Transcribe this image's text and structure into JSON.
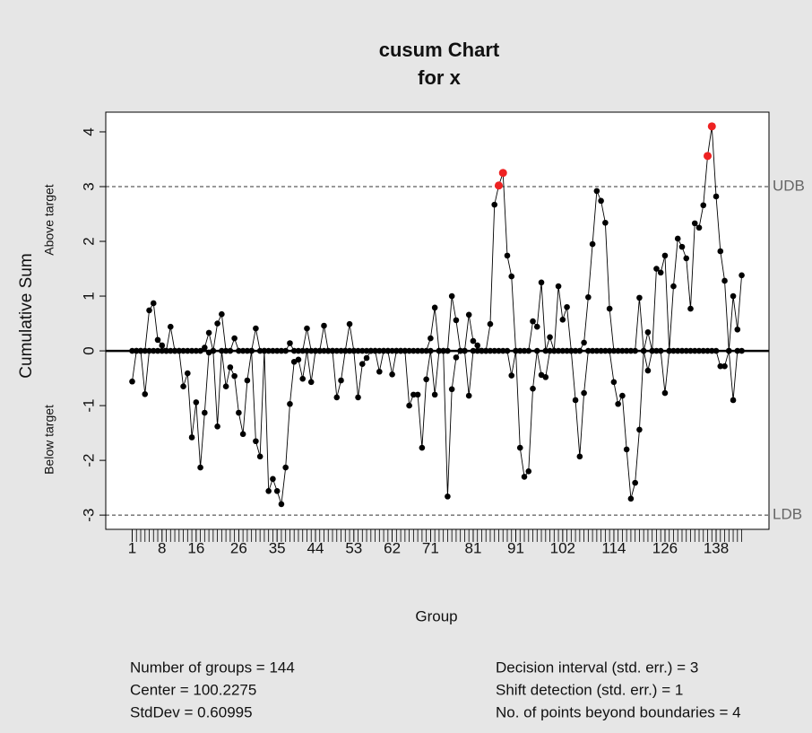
{
  "chart_data": {
    "type": "cusum",
    "title": [
      "cusum Chart",
      "for x"
    ],
    "xlabel": "Group",
    "ylabel": "Cumulative Sum",
    "upper_label": "Above target",
    "lower_label": "Below target",
    "x": [
      1,
      2,
      3,
      4,
      5,
      6,
      7,
      8,
      9,
      10,
      11,
      12,
      13,
      14,
      15,
      16,
      17,
      18,
      19,
      20,
      21,
      22,
      23,
      24,
      25,
      26,
      27,
      28,
      29,
      30,
      31,
      32,
      33,
      34,
      35,
      36,
      37,
      38,
      39,
      40,
      41,
      42,
      43,
      44,
      45,
      46,
      47,
      48,
      49,
      50,
      51,
      52,
      53,
      54,
      55,
      56,
      57,
      58,
      59,
      60,
      61,
      62,
      63,
      64,
      65,
      66,
      67,
      68,
      69,
      70,
      71,
      72,
      73,
      74,
      75,
      76,
      77,
      78,
      79,
      80,
      81,
      82,
      83,
      84,
      85,
      86,
      87,
      88,
      89,
      90,
      91,
      92,
      93,
      94,
      95,
      96,
      97,
      98,
      99,
      100,
      101,
      102,
      103,
      104,
      105,
      106,
      107,
      108,
      109,
      110,
      111,
      112,
      113,
      114,
      115,
      116,
      117,
      118,
      119,
      120,
      121,
      122,
      123,
      124,
      125,
      126,
      127,
      128,
      129,
      130,
      131,
      132,
      133,
      134,
      135,
      136,
      137,
      138,
      139,
      140,
      141,
      142,
      143,
      144
    ],
    "series": [
      {
        "color": "#000000",
        "values": [
          0,
          0,
          0,
          0,
          0.74,
          0.87,
          0.2,
          0.1,
          0,
          0.44,
          0,
          0,
          0,
          0,
          0,
          0,
          0,
          0.06,
          0.33,
          0,
          0.5,
          0.67,
          0,
          0,
          0.23,
          0,
          0,
          0,
          0,
          0.41,
          0,
          0,
          0,
          0,
          0,
          0,
          0,
          0.14,
          0,
          0,
          0,
          0.41,
          0,
          0,
          0,
          0.46,
          0,
          0,
          0,
          0,
          0,
          0.49,
          0,
          0,
          0,
          0,
          0,
          0,
          0,
          0,
          0,
          0,
          0,
          0,
          0,
          0,
          0,
          0,
          0,
          0,
          0.23,
          0.79,
          0,
          0,
          0,
          1.0,
          0.56,
          0,
          0,
          0.66,
          0.18,
          0.1,
          0,
          0,
          0.49,
          2.67,
          3.02,
          3.25,
          1.74,
          1.36,
          0,
          0,
          0,
          0,
          0.54,
          0.44,
          1.25,
          0,
          0.25,
          0,
          1.18,
          0.57,
          0.8,
          0,
          0,
          0,
          0.15,
          0.98,
          1.95,
          2.92,
          2.74,
          2.34,
          0.77,
          0,
          0,
          0,
          0,
          0,
          0,
          0.97,
          0,
          0.34,
          0,
          1.5,
          1.43,
          1.74,
          0,
          1.18,
          2.05,
          1.9,
          1.69,
          0.77,
          2.33,
          2.25,
          2.66,
          3.56,
          4.1,
          2.82,
          1.82,
          1.28,
          0,
          1.0,
          0.39,
          1.38
        ]
      },
      {
        "color": "#000000",
        "values": [
          -0.56,
          0,
          0,
          -0.79,
          0,
          0,
          0,
          0,
          0,
          0,
          0,
          0,
          -0.65,
          -0.41,
          -1.58,
          -0.94,
          -2.13,
          -1.13,
          -0.03,
          0,
          -1.38,
          0,
          -0.65,
          -0.3,
          -0.46,
          -1.13,
          -1.52,
          -0.54,
          0,
          -1.65,
          -1.93,
          0,
          -2.56,
          -2.34,
          -2.56,
          -2.8,
          -2.13,
          -0.97,
          -0.2,
          -0.16,
          -0.51,
          0,
          -0.57,
          0,
          0,
          0,
          0,
          0,
          -0.85,
          -0.54,
          0,
          0,
          0,
          -0.85,
          -0.24,
          -0.13,
          0,
          0,
          -0.38,
          0,
          0,
          -0.43,
          0,
          0,
          0,
          -1.0,
          -0.8,
          -0.8,
          -1.77,
          -0.52,
          0,
          -0.8,
          0,
          0,
          -2.66,
          -0.7,
          -0.12,
          0,
          0,
          -0.82,
          0,
          0,
          0,
          0,
          0,
          0,
          0,
          0,
          0,
          -0.45,
          0,
          -1.77,
          -2.3,
          -2.2,
          -0.69,
          0,
          -0.44,
          -0.48,
          0,
          0,
          0,
          0,
          0,
          0,
          -0.9,
          -1.93,
          -0.77,
          0,
          0,
          0,
          0,
          0,
          0,
          -0.57,
          -0.97,
          -0.82,
          -1.8,
          -2.7,
          -2.41,
          -1.44,
          0,
          -0.36,
          0,
          0,
          0,
          -0.77,
          0,
          0,
          0,
          0,
          0,
          0,
          0,
          0,
          0,
          0,
          0,
          0,
          -0.28,
          -0.28,
          0,
          -0.9,
          0,
          0
        ]
      }
    ],
    "violation_color": "#ee2222",
    "limits": [
      {
        "name": "UDB",
        "value": 3
      },
      {
        "name": "LDB",
        "value": -3
      }
    ],
    "xlim": [
      -5.2,
      150.4
    ],
    "ylim": [
      -3.26,
      4.36
    ],
    "xticks": [
      1,
      8,
      16,
      26,
      35,
      44,
      53,
      62,
      71,
      81,
      91,
      102,
      114,
      126,
      138
    ],
    "yticks": [
      -3,
      -2,
      -1,
      0,
      1,
      2,
      3,
      4
    ],
    "stats_left": [
      "Number of groups = 144",
      "Center = 100.2275",
      "StdDev = 0.60995"
    ],
    "stats_right": [
      "Decision interval (std. err.) = 3",
      "Shift detection (std. err.) = 1",
      "No. of points beyond boundaries = 4"
    ]
  }
}
